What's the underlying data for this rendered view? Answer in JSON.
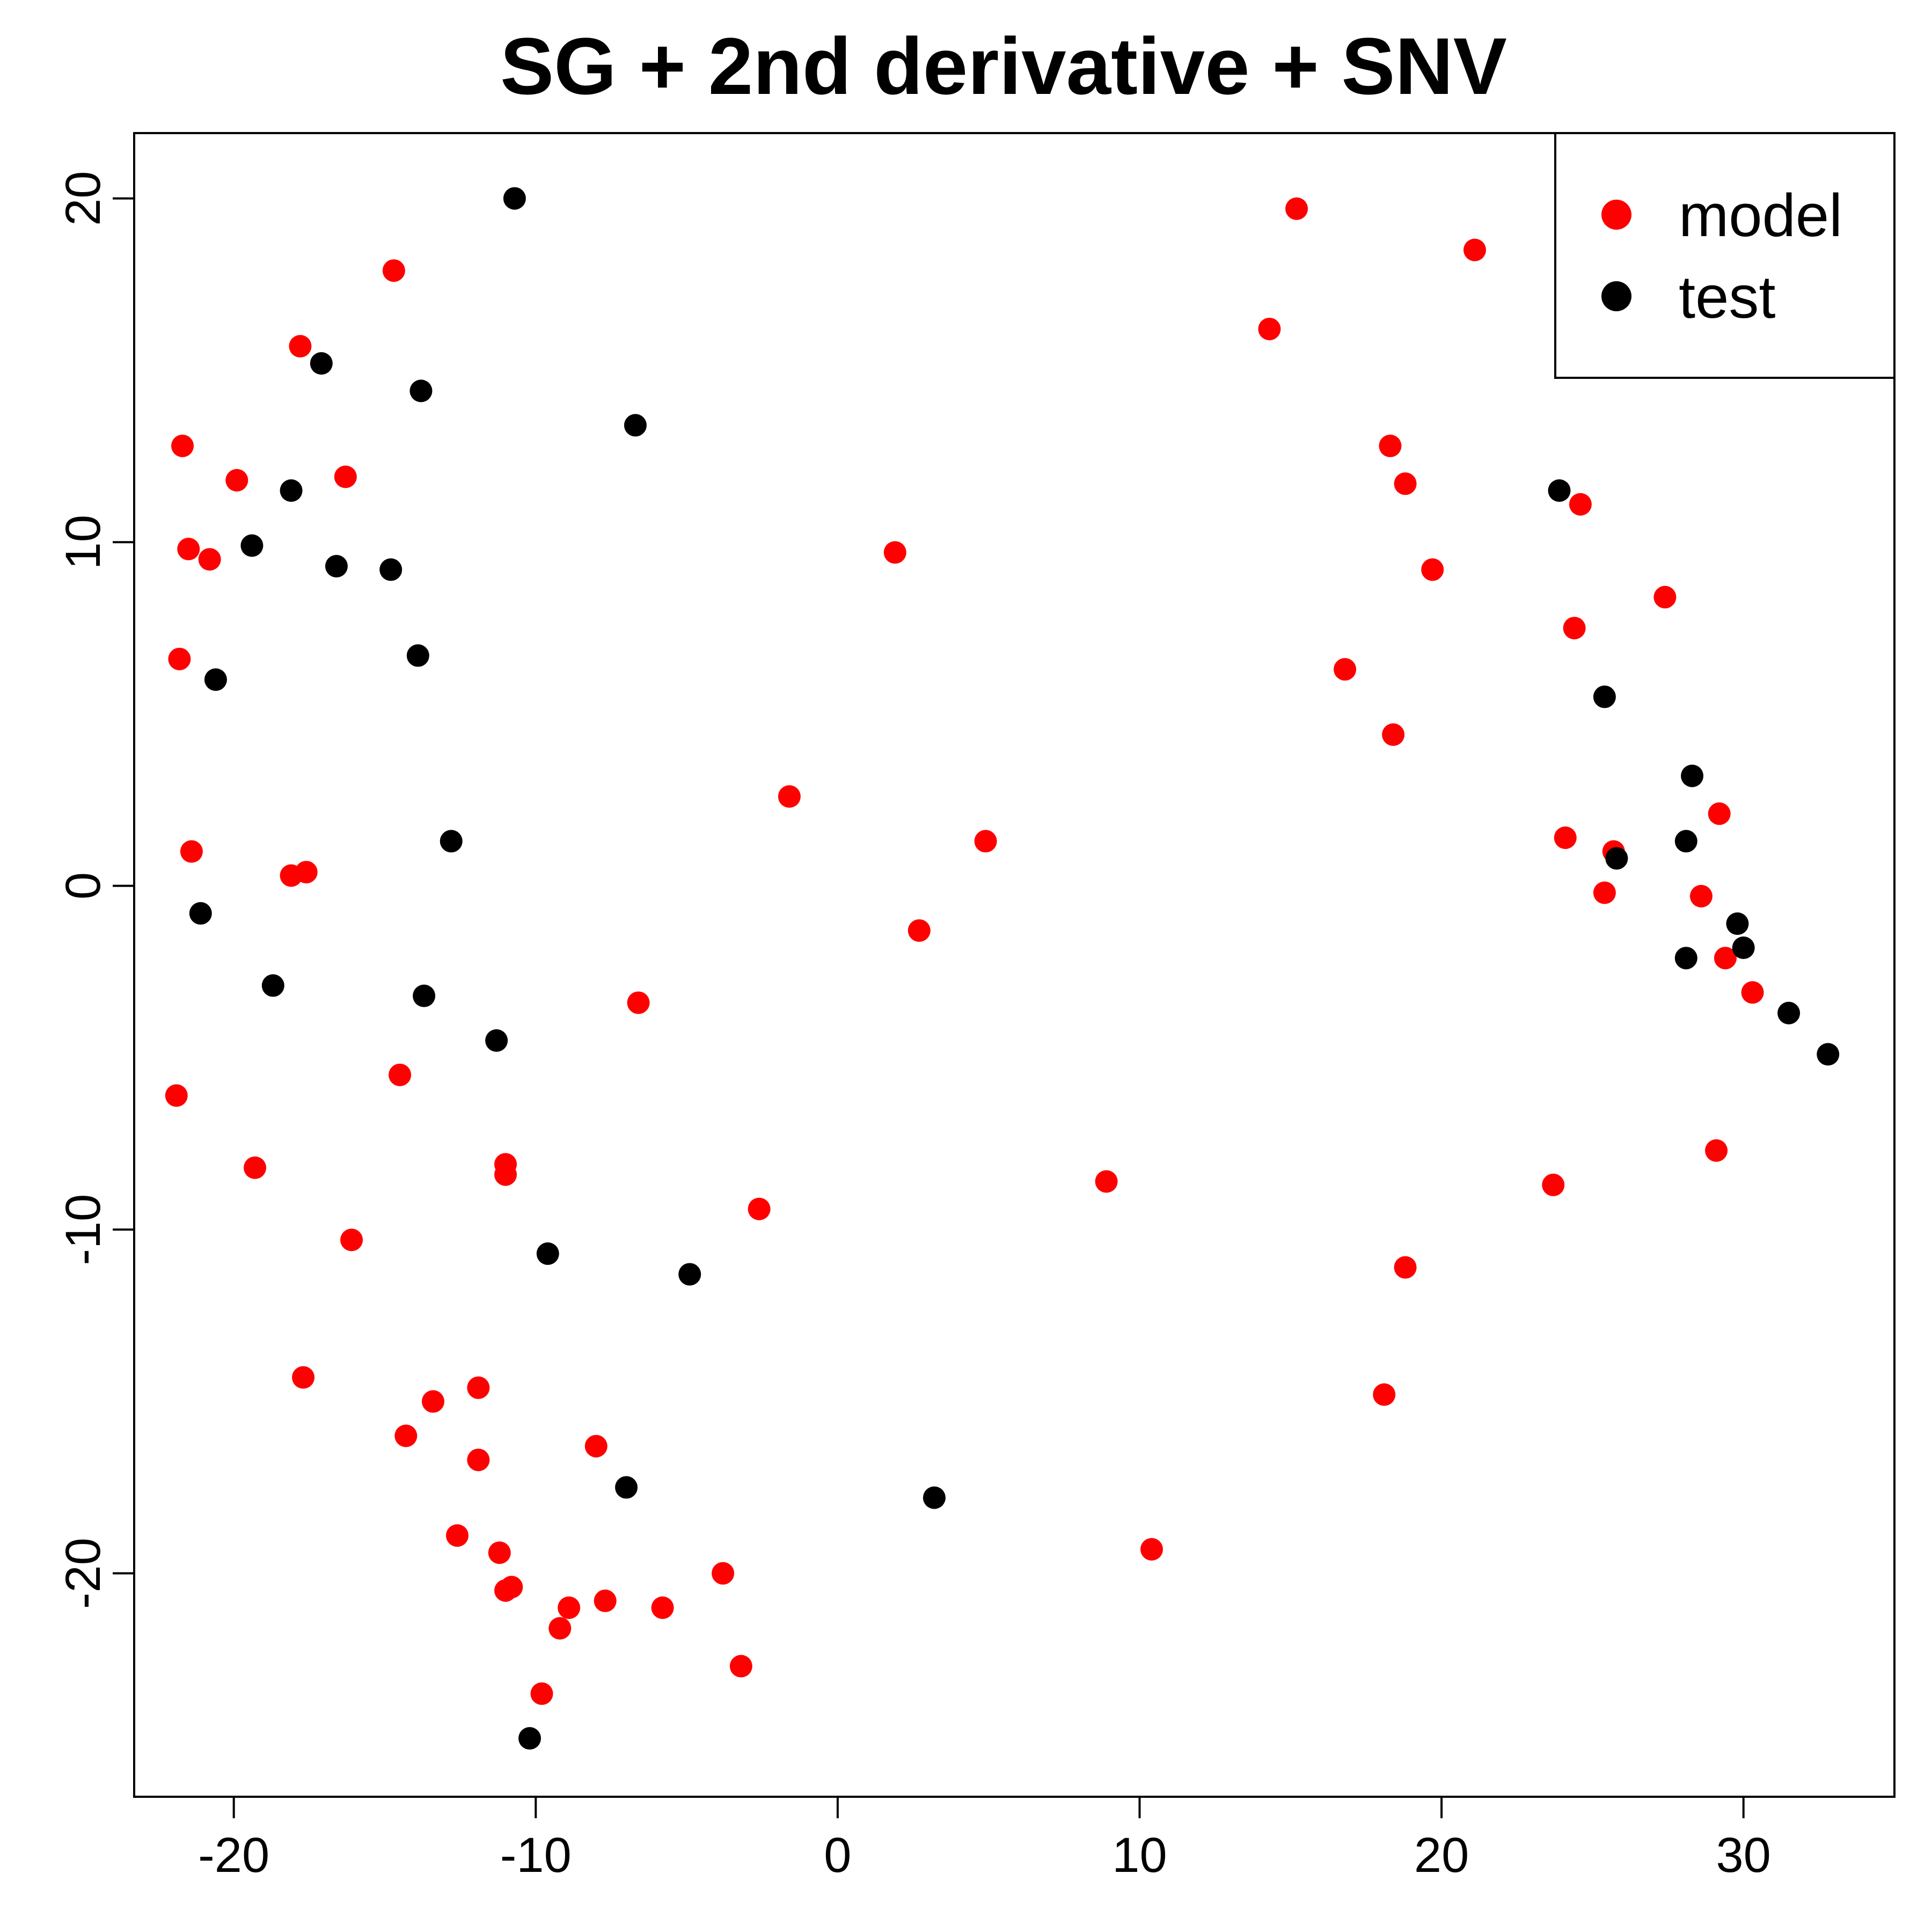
{
  "chart_data": {
    "type": "scatter",
    "title": "SG + 2nd derivative + SNV",
    "xlabel": "",
    "ylabel": "",
    "xlim": [
      -23.3,
      35.0
    ],
    "ylim": [
      -26.5,
      21.9
    ],
    "x_ticks": [
      -20,
      -10,
      0,
      10,
      20,
      30
    ],
    "y_ticks": [
      -20,
      -10,
      0,
      10,
      20
    ],
    "x_tick_labels": [
      "-20",
      "-10",
      "0",
      "10",
      "20",
      "30"
    ],
    "y_tick_labels": [
      "-20",
      "-10",
      "0",
      "10",
      "20"
    ],
    "grid": false,
    "legend": {
      "position": "top-right",
      "entries": [
        "model",
        "test"
      ]
    },
    "series": [
      {
        "name": "model",
        "color": "#ff0000",
        "points": [
          [
            -14.7,
            17.9
          ],
          [
            -17.8,
            15.7
          ],
          [
            -21.7,
            12.8
          ],
          [
            -19.9,
            11.8
          ],
          [
            -16.3,
            11.9
          ],
          [
            -21.5,
            9.8
          ],
          [
            -20.8,
            9.5
          ],
          [
            -21.8,
            6.6
          ],
          [
            -21.4,
            1.0
          ],
          [
            -18.1,
            0.3
          ],
          [
            -17.6,
            0.4
          ],
          [
            -21.9,
            -6.1
          ],
          [
            -14.5,
            -5.5
          ],
          [
            -19.3,
            -8.2
          ],
          [
            -11.0,
            -8.1
          ],
          [
            -11.0,
            -8.4
          ],
          [
            -16.1,
            -10.3
          ],
          [
            -17.7,
            -14.3
          ],
          [
            -14.3,
            -16.0
          ],
          [
            -13.4,
            -15.0
          ],
          [
            -11.9,
            -14.6
          ],
          [
            -11.9,
            -16.7
          ],
          [
            -12.6,
            -18.9
          ],
          [
            -11.2,
            -19.4
          ],
          [
            -11.0,
            -20.5
          ],
          [
            -10.8,
            -20.4
          ],
          [
            -8.0,
            -16.3
          ],
          [
            -8.9,
            -21.0
          ],
          [
            -9.2,
            -21.6
          ],
          [
            -9.8,
            -23.5
          ],
          [
            -7.7,
            -20.8
          ],
          [
            -5.8,
            -21.0
          ],
          [
            -3.8,
            -20.0
          ],
          [
            -3.2,
            -22.7
          ],
          [
            -2.6,
            -9.4
          ],
          [
            -6.6,
            -3.4
          ],
          [
            -1.6,
            2.6
          ],
          [
            1.9,
            9.7
          ],
          [
            2.7,
            -1.3
          ],
          [
            4.9,
            1.3
          ],
          [
            8.9,
            -8.6
          ],
          [
            10.4,
            -19.3
          ],
          [
            14.3,
            16.2
          ],
          [
            15.2,
            19.7
          ],
          [
            16.8,
            6.3
          ],
          [
            18.3,
            12.8
          ],
          [
            18.8,
            11.7
          ],
          [
            19.7,
            9.2
          ],
          [
            18.4,
            4.4
          ],
          [
            18.1,
            -14.8
          ],
          [
            18.8,
            -11.1
          ],
          [
            21.1,
            18.5
          ],
          [
            23.7,
            -8.7
          ],
          [
            24.1,
            1.4
          ],
          [
            24.4,
            7.5
          ],
          [
            24.6,
            11.1
          ],
          [
            25.4,
            -0.2
          ],
          [
            25.7,
            1.0
          ],
          [
            27.4,
            8.4
          ],
          [
            28.6,
            -0.3
          ],
          [
            29.2,
            2.1
          ],
          [
            29.4,
            -2.1
          ],
          [
            29.1,
            -7.7
          ],
          [
            30.3,
            -3.1
          ]
        ]
      },
      {
        "name": "test",
        "color": "#000000",
        "points": [
          [
            -10.7,
            20.0
          ],
          [
            -17.1,
            15.2
          ],
          [
            -13.8,
            14.4
          ],
          [
            -6.7,
            13.4
          ],
          [
            -18.1,
            11.5
          ],
          [
            -19.4,
            9.9
          ],
          [
            -16.6,
            9.3
          ],
          [
            -14.8,
            9.2
          ],
          [
            -13.9,
            6.7
          ],
          [
            -20.6,
            6.0
          ],
          [
            -12.8,
            1.3
          ],
          [
            -21.1,
            -0.8
          ],
          [
            -18.7,
            -2.9
          ],
          [
            -13.7,
            -3.2
          ],
          [
            -11.3,
            -4.5
          ],
          [
            -9.6,
            -10.7
          ],
          [
            -4.9,
            -11.3
          ],
          [
            -7.0,
            -17.5
          ],
          [
            3.2,
            -17.8
          ],
          [
            -10.2,
            -24.8
          ],
          [
            23.9,
            11.5
          ],
          [
            25.4,
            5.5
          ],
          [
            28.3,
            3.2
          ],
          [
            28.1,
            1.3
          ],
          [
            25.8,
            0.8
          ],
          [
            29.8,
            -1.1
          ],
          [
            30.0,
            -1.8
          ],
          [
            28.1,
            -2.1
          ],
          [
            31.5,
            -3.7
          ],
          [
            32.8,
            -4.9
          ]
        ]
      }
    ]
  }
}
